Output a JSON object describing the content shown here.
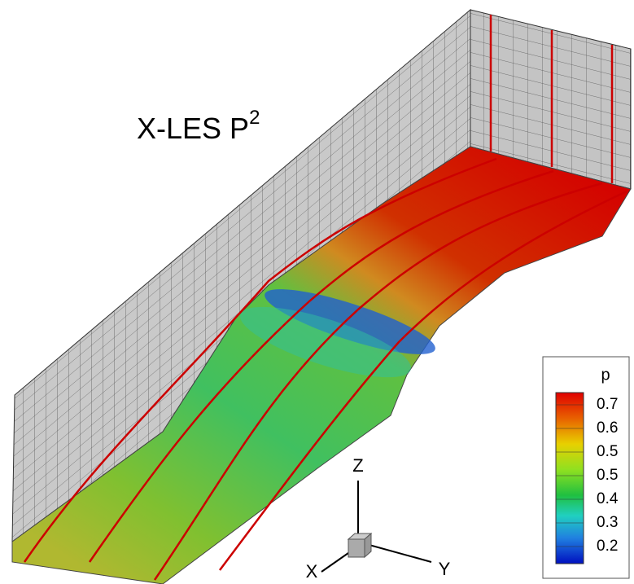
{
  "title": {
    "text": "X-LES P",
    "superscript": "2"
  },
  "legend": {
    "title": "p",
    "labels": [
      "0.7",
      "0.6",
      "0.5",
      "0.5",
      "0.4",
      "0.3",
      "0.2"
    ]
  },
  "axes": {
    "z": "Z",
    "y": "Y",
    "x": "X"
  }
}
